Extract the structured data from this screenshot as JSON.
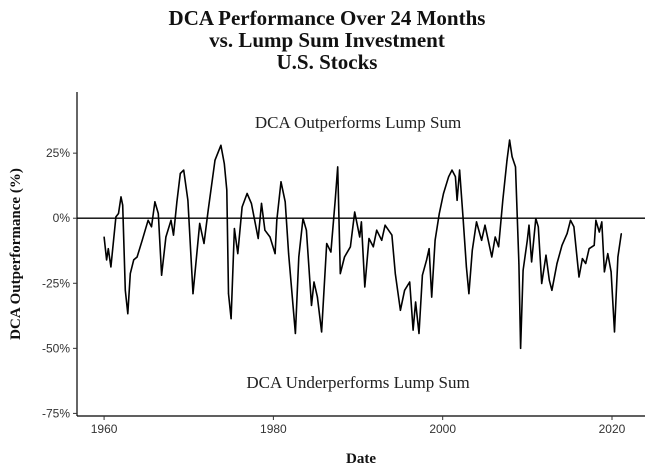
{
  "chart_data": {
    "type": "line",
    "title": [
      "DCA Performance Over 24 Months",
      "vs. Lump Sum Investment",
      "U.S. Stocks"
    ],
    "xlabel": "Date",
    "ylabel": "DCA Outperformance (%)",
    "xlim": [
      1956.8,
      2023.9
    ],
    "ylim": [
      -76,
      48.5
    ],
    "xticks": [
      {
        "value": 1960,
        "label": "1960"
      },
      {
        "value": 1980,
        "label": "1980"
      },
      {
        "value": 2000,
        "label": "2000"
      },
      {
        "value": 2020,
        "label": "2020"
      }
    ],
    "yticks": [
      {
        "value": 25,
        "label": "25%"
      },
      {
        "value": 0,
        "label": "0%"
      },
      {
        "value": -25,
        "label": "-25%"
      },
      {
        "value": -50,
        "label": "-50%"
      },
      {
        "value": -75,
        "label": "-75%"
      }
    ],
    "reference_line": 0,
    "grid": false,
    "annotations": [
      {
        "text": "DCA Outperforms Lump Sum",
        "x": 1990,
        "y": 37
      },
      {
        "text": "DCA Underperforms Lump Sum",
        "x": 1990,
        "y": -63
      }
    ],
    "line_color": "#000000",
    "series": [
      {
        "x": [
          1960.0,
          1960.3,
          1960.5,
          1960.8,
          1961.4,
          1961.7,
          1962.0,
          1962.2,
          1962.5,
          1962.8,
          1963.1,
          1963.5,
          1963.9,
          1964.5,
          1965.2,
          1965.6,
          1966.0,
          1966.4,
          1966.8,
          1967.3,
          1967.9,
          1968.2,
          1968.6,
          1969.0,
          1969.4,
          1969.9,
          1970.5,
          1971.3,
          1971.8,
          1972.3,
          1973.1,
          1973.8,
          1974.2,
          1974.5,
          1974.7,
          1975.0,
          1975.4,
          1975.8,
          1976.3,
          1976.9,
          1977.4,
          1978.2,
          1978.6,
          1979.0,
          1979.6,
          1980.2,
          1980.4,
          1980.9,
          1981.4,
          1981.8,
          1982.6,
          1983.0,
          1983.5,
          1983.9,
          1984.5,
          1984.8,
          1985.2,
          1985.7,
          1986.3,
          1986.8,
          1987.3,
          1987.6,
          1987.9,
          1988.4,
          1989.1,
          1989.6,
          1990.2,
          1990.4,
          1990.8,
          1991.3,
          1991.8,
          1992.2,
          1992.8,
          1993.2,
          1994.0,
          1994.4,
          1995.0,
          1995.5,
          1996.1,
          1996.5,
          1996.8,
          1997.2,
          1997.6,
          1998.1,
          1998.4,
          1998.7,
          1999.1,
          1999.6,
          2000.1,
          2000.7,
          2001.1,
          2001.5,
          2001.7,
          2002.0,
          2002.4,
          2002.8,
          2003.1,
          2003.5,
          2004.0,
          2004.6,
          2005.0,
          2005.8,
          2006.2,
          2006.6,
          2007.1,
          2007.6,
          2007.9,
          2008.2,
          2008.6,
          2009.0,
          2009.2,
          2009.5,
          2010.0,
          2010.2,
          2010.5,
          2011.0,
          2011.3,
          2011.7,
          2012.2,
          2012.6,
          2012.9,
          2013.5,
          2014.1,
          2014.7,
          2015.1,
          2015.5,
          2016.1,
          2016.5,
          2016.9,
          2017.3,
          2017.9,
          2018.1,
          2018.5,
          2018.8,
          2019.1,
          2019.5,
          2019.9,
          2020.3,
          2020.7,
          2021.1
        ],
        "y": [
          -7.2,
          -16,
          -11.7,
          -18.7,
          0.5,
          1.8,
          8.2,
          5,
          -27.7,
          -36.7,
          -21.3,
          -16,
          -14.9,
          -8.5,
          -0.8,
          -3.3,
          6.3,
          1.8,
          -21.9,
          -7.2,
          -0.8,
          -6.5,
          6.3,
          17.2,
          18.5,
          6.9,
          -29,
          -2,
          -9.7,
          3.1,
          22.3,
          28,
          21,
          10.8,
          -29,
          -38.6,
          -4,
          -13.6,
          4.3,
          9.5,
          5.7,
          -7.8,
          5.7,
          -4.6,
          -7.2,
          -13.6,
          -0.8,
          14,
          6.3,
          -13.6,
          -44.3,
          -14.9,
          -0.1,
          -4.6,
          -33.5,
          -24.5,
          -30.3,
          -43.7,
          -9.7,
          -13,
          6.9,
          19.7,
          -21.3,
          -14.9,
          -11,
          2.4,
          -7.2,
          -1.4,
          -26.4,
          -7.8,
          -11,
          -4.6,
          -8.5,
          -2.7,
          -6.5,
          -21.3,
          -35.4,
          -27.7,
          -24.5,
          -43,
          -32.2,
          -44.3,
          -21.9,
          -16,
          -11.7,
          -30.3,
          -8.5,
          1.8,
          9.5,
          15.9,
          18.5,
          16,
          6.9,
          18.5,
          0.5,
          -18.7,
          -29,
          -12.3,
          -1.4,
          -8.5,
          -2.7,
          -14.9,
          -7.2,
          -11,
          6.9,
          22.3,
          30,
          23.6,
          19.7,
          -17.4,
          -50,
          -20,
          -8.5,
          -2.7,
          -16.8,
          -0.1,
          -3.3,
          -25.1,
          -14.2,
          -23.8,
          -27.7,
          -17.4,
          -10.4,
          -5.9,
          -0.8,
          -3.3,
          -22.6,
          -15.5,
          -17.4,
          -11.7,
          -10.4,
          -0.8,
          -5.3,
          -1.4,
          -20.6,
          -13.6,
          -20.6,
          -43.7,
          -14.9,
          -5.9
        ]
      }
    ]
  }
}
